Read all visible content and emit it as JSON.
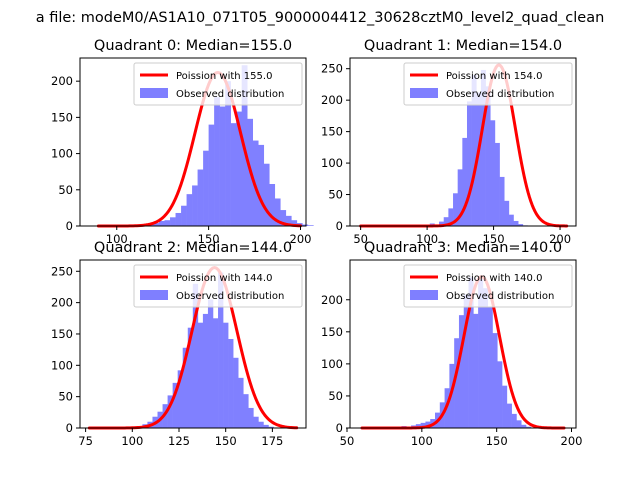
{
  "figure": {
    "suptitle": "a file: modeM0/AS1A10_071T05_9000004412_30628cztM0_level2_quad_clean"
  },
  "colors": {
    "hist": "#8080ff",
    "hist_legend": "#7f7fff",
    "line": "#ff0000",
    "axes": "#000000",
    "legend_edge": "#cccccc"
  },
  "chart_data": [
    {
      "type": "bar",
      "title": "Quadrant 0: Median=155.0",
      "median": 155.0,
      "legend": {
        "line": "Poission with 155.0",
        "hist": "Observed distribution",
        "placement": "upper right"
      },
      "xlim": [
        80,
        203
      ],
      "ylim": [
        0,
        232
      ],
      "xticks": [
        100,
        150,
        200
      ],
      "yticks": [
        0,
        50,
        100,
        150,
        200
      ],
      "bin_start": 117,
      "bin_width": 3,
      "counts": [
        2,
        4,
        7,
        8,
        12,
        18,
        28,
        44,
        56,
        78,
        104,
        140,
        178,
        165,
        200,
        142,
        158,
        222,
        148,
        118,
        112,
        86,
        58,
        38,
        22,
        14,
        8,
        4,
        2,
        1
      ],
      "poisson": {
        "mean": 155.0,
        "amplitude": 212,
        "sigma": 12.4,
        "range": [
          90,
          200
        ]
      }
    },
    {
      "type": "bar",
      "title": "Quadrant 1: Median=154.0",
      "median": 154.0,
      "legend": {
        "line": "Poission with 154.0",
        "hist": "Observed distribution",
        "placement": "upper right"
      },
      "xlim": [
        42,
        212
      ],
      "ylim": [
        0,
        267
      ],
      "xticks": [
        50,
        100,
        150,
        200
      ],
      "yticks": [
        0,
        50,
        100,
        150,
        200,
        250
      ],
      "bin_start": 95,
      "bin_width": 3.5,
      "counts": [
        2,
        0,
        4,
        2,
        7,
        14,
        28,
        52,
        90,
        140,
        198,
        240,
        212,
        248,
        222,
        168,
        132,
        78,
        40,
        18,
        8,
        3,
        1
      ],
      "poisson": {
        "mean": 154.0,
        "amplitude": 256,
        "sigma": 12.4,
        "range": [
          50,
          205
        ]
      }
    },
    {
      "type": "bar",
      "title": "Quadrant 2: Median=144.0",
      "median": 144.0,
      "legend": {
        "line": "Poission with 144.0",
        "hist": "Observed distribution",
        "placement": "upper right"
      },
      "xlim": [
        72,
        193
      ],
      "ylim": [
        0,
        268
      ],
      "xticks": [
        75,
        100,
        125,
        150,
        175
      ],
      "yticks": [
        0,
        50,
        100,
        150,
        200,
        250
      ],
      "bin_start": 100,
      "bin_width": 2.7,
      "counts": [
        2,
        3,
        6,
        10,
        18,
        26,
        38,
        52,
        72,
        92,
        128,
        160,
        230,
        168,
        182,
        205,
        175,
        248,
        168,
        142,
        112,
        80,
        54,
        32,
        18,
        10,
        5,
        2
      ],
      "poisson": {
        "mean": 144.0,
        "amplitude": 256,
        "sigma": 12.0,
        "range": [
          77,
          188
        ]
      }
    },
    {
      "type": "bar",
      "title": "Quadrant 3: Median=140.0",
      "median": 140.0,
      "legend": {
        "line": "Poission with 140.0",
        "hist": "Observed distribution",
        "placement": "upper right"
      },
      "xlim": [
        52,
        203
      ],
      "ylim": [
        0,
        262
      ],
      "xticks": [
        50,
        100,
        150,
        200
      ],
      "yticks": [
        0,
        50,
        100,
        150,
        200
      ],
      "bin_start": 80,
      "bin_width": 3.2,
      "counts": [
        2,
        1,
        3,
        2,
        4,
        6,
        8,
        10,
        14,
        24,
        40,
        62,
        100,
        140,
        176,
        208,
        235,
        178,
        232,
        218,
        188,
        148,
        104,
        66,
        38,
        22,
        12,
        5,
        2
      ],
      "poisson": {
        "mean": 140.0,
        "amplitude": 236,
        "sigma": 11.9,
        "range": [
          60,
          195
        ]
      }
    }
  ]
}
